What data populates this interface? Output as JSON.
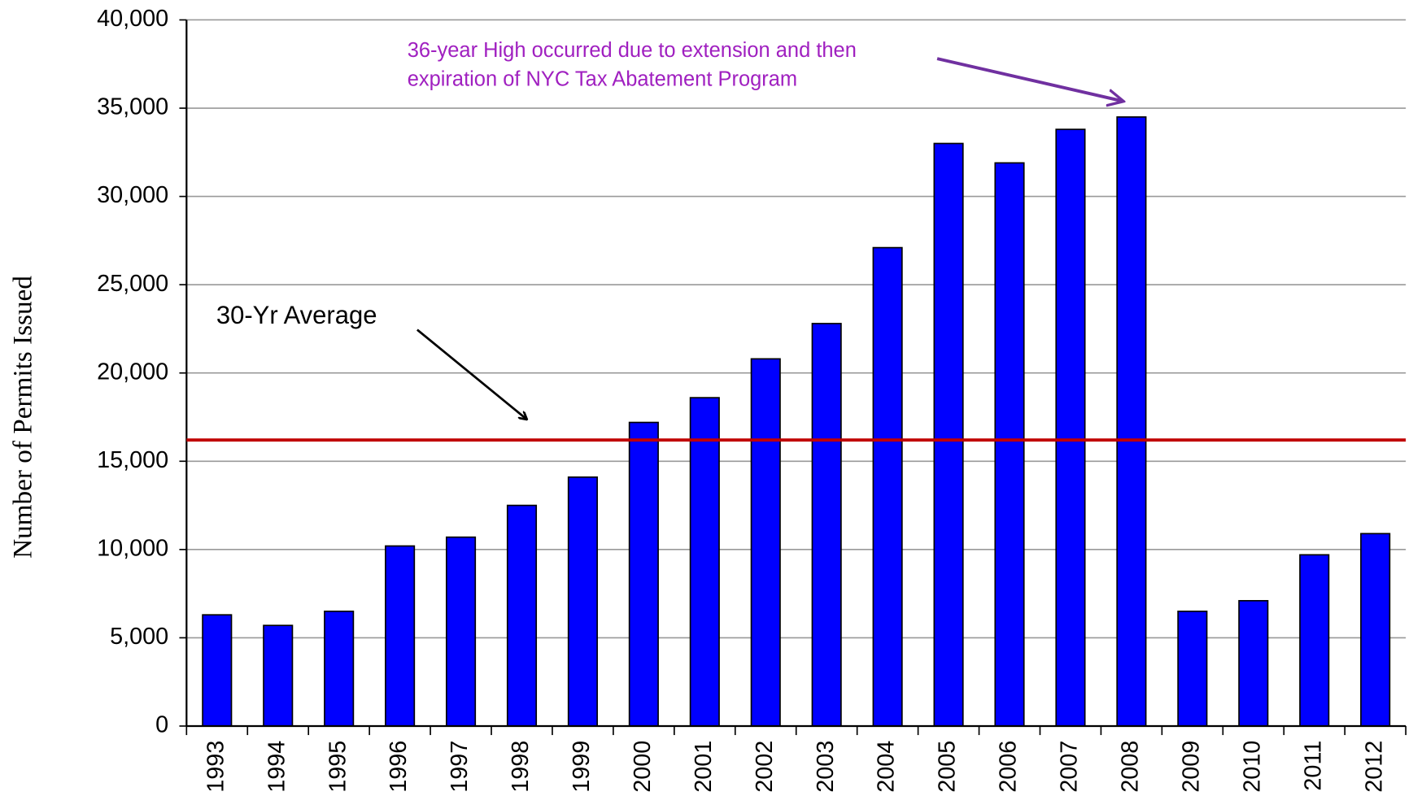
{
  "chart_data": {
    "type": "bar",
    "ylabel": "Number of Permits Issued",
    "categories": [
      "1993",
      "1994",
      "1995",
      "1996",
      "1997",
      "1998",
      "1999",
      "2000",
      "2001",
      "2002",
      "2003",
      "2004",
      "2005",
      "2006",
      "2007",
      "2008",
      "2009",
      "2010",
      "2011",
      "2012"
    ],
    "values": [
      6300,
      5700,
      6500,
      10200,
      10700,
      12500,
      14100,
      17200,
      18600,
      20800,
      22800,
      27100,
      33000,
      31900,
      33800,
      34500,
      6500,
      7100,
      9700,
      10900
    ],
    "color": "#0000ff",
    "ylim": [
      0,
      40000
    ],
    "yticks": [
      0,
      {
        "value": 5000,
        "label": "5,000"
      },
      {
        "value": 10000,
        "label": "10,000"
      },
      {
        "value": 15000,
        "label": "15,000"
      },
      {
        "value": 20000,
        "label": "20,000"
      },
      {
        "value": 25000,
        "label": "25,000"
      },
      {
        "value": 30000,
        "label": "30,000"
      },
      {
        "value": 35000,
        "label": "35,000"
      },
      {
        "value": 40000,
        "label": "40,000"
      }
    ],
    "grid": true,
    "average": {
      "label": "30-Yr Average",
      "value": 16200,
      "color": "#c00000"
    },
    "annotation": {
      "lines": [
        "36-year High occurred due to extension and then",
        "expiration of NYC Tax Abatement Program"
      ],
      "color": "#a020c0"
    }
  }
}
